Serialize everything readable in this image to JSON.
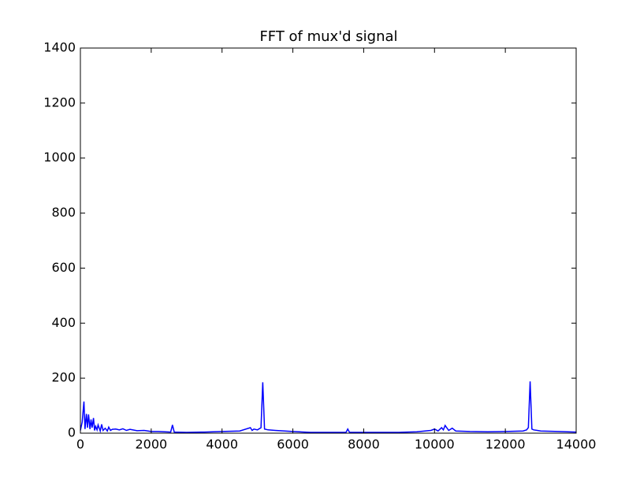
{
  "chart_data": {
    "type": "line",
    "title": "FFT of mux'd signal",
    "x": [
      0,
      50,
      100,
      130,
      170,
      200,
      230,
      270,
      300,
      330,
      370,
      400,
      430,
      470,
      500,
      560,
      600,
      640,
      700,
      760,
      800,
      850,
      900,
      1000,
      1100,
      1200,
      1300,
      1400,
      1600,
      1800,
      2000,
      2200,
      2550,
      2600,
      2650,
      3000,
      3500,
      4000,
      4500,
      4800,
      4850,
      4900,
      5000,
      5100,
      5150,
      5200,
      5300,
      5500,
      6000,
      6500,
      7000,
      7500,
      7550,
      7600,
      8000,
      9000,
      9500,
      9900,
      10000,
      10100,
      10200,
      10250,
      10300,
      10400,
      10500,
      10600,
      11000,
      11500,
      12000,
      12500,
      12600,
      12650,
      12700,
      12750,
      12800,
      12900,
      13000,
      13500,
      14000
    ],
    "series": [
      {
        "color": "#0000ff",
        "values": [
          10,
          40,
          115,
          15,
          70,
          20,
          68,
          15,
          50,
          20,
          55,
          10,
          25,
          12,
          30,
          8,
          32,
          10,
          18,
          8,
          22,
          10,
          14,
          15,
          12,
          16,
          10,
          14,
          9,
          10,
          6,
          6,
          4,
          30,
          4,
          3,
          4,
          6,
          8,
          20,
          10,
          15,
          12,
          20,
          185,
          15,
          12,
          10,
          6,
          3,
          3,
          3,
          15,
          3,
          3,
          3,
          5,
          10,
          15,
          8,
          20,
          12,
          28,
          10,
          18,
          8,
          6,
          5,
          6,
          8,
          12,
          20,
          188,
          15,
          12,
          10,
          8,
          6,
          4
        ]
      }
    ],
    "xlim": [
      0,
      14000
    ],
    "ylim": [
      0,
      1400
    ],
    "xticks": [
      0,
      2000,
      4000,
      6000,
      8000,
      10000,
      12000,
      14000
    ],
    "yticks": [
      0,
      200,
      400,
      600,
      800,
      1000,
      1200,
      1400
    ]
  }
}
